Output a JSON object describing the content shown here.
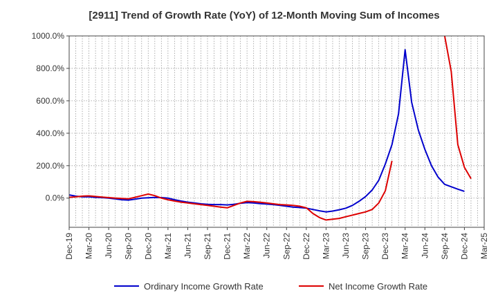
{
  "chart_data": {
    "type": "line",
    "title": "[2911]  Trend of Growth Rate (YoY) of 12-Month Moving Sum of Incomes",
    "xlabel": "",
    "ylabel": "",
    "ylim": [
      -180,
      1000
    ],
    "y_ticks": [
      0,
      200,
      400,
      600,
      800,
      1000
    ],
    "y_tick_labels": [
      "0.0%",
      "200.0%",
      "400.0%",
      "600.0%",
      "800.0%",
      "1000.0%"
    ],
    "grid": true,
    "legend_position": "bottom",
    "x_tick_labels": [
      "Dec-19",
      "Mar-20",
      "Jun-20",
      "Sep-20",
      "Dec-20",
      "Mar-21",
      "Jun-21",
      "Sep-21",
      "Dec-21",
      "Mar-22",
      "Jun-22",
      "Sep-22",
      "Dec-22",
      "Mar-23",
      "Jun-23",
      "Sep-23",
      "Dec-23",
      "Mar-24",
      "Jun-24",
      "Sep-24",
      "Dec-24",
      "Mar-25"
    ],
    "months": [
      "Dec-19",
      "Jan-20",
      "Feb-20",
      "Mar-20",
      "Apr-20",
      "May-20",
      "Jun-20",
      "Jul-20",
      "Aug-20",
      "Sep-20",
      "Oct-20",
      "Nov-20",
      "Dec-20",
      "Jan-21",
      "Feb-21",
      "Mar-21",
      "Apr-21",
      "May-21",
      "Jun-21",
      "Jul-21",
      "Aug-21",
      "Sep-21",
      "Oct-21",
      "Nov-21",
      "Dec-21",
      "Jan-22",
      "Feb-22",
      "Mar-22",
      "Apr-22",
      "May-22",
      "Jun-22",
      "Jul-22",
      "Aug-22",
      "Sep-22",
      "Oct-22",
      "Nov-22",
      "Dec-22",
      "Jan-23",
      "Feb-23",
      "Mar-23",
      "Apr-23",
      "May-23",
      "Jun-23",
      "Jul-23",
      "Aug-23",
      "Sep-23",
      "Oct-23",
      "Nov-23",
      "Dec-23",
      "Jan-24",
      "Feb-24",
      "Mar-24",
      "Apr-24",
      "May-24",
      "Jun-24",
      "Jul-24",
      "Aug-24",
      "Sep-24",
      "Oct-24",
      "Nov-24",
      "Dec-24",
      "Jan-25",
      "Feb-25",
      "Mar-25"
    ],
    "series": [
      {
        "name": "Ordinary Income Growth Rate",
        "color": "#0000cc",
        "values": [
          20,
          12,
          8,
          8,
          5,
          3,
          0,
          -5,
          -10,
          -12,
          -6,
          0,
          2,
          4,
          3,
          0,
          -10,
          -18,
          -25,
          -30,
          -35,
          -38,
          -40,
          -40,
          -42,
          -38,
          -32,
          -28,
          -30,
          -34,
          -37,
          -40,
          -45,
          -50,
          -55,
          -58,
          -62,
          -70,
          -78,
          -85,
          -80,
          -72,
          -62,
          -45,
          -20,
          10,
          50,
          110,
          210,
          330,
          520,
          915,
          590,
          420,
          300,
          200,
          130,
          85,
          70,
          55,
          42,
          null,
          null,
          null
        ]
      },
      {
        "name": "Net Income Growth Rate",
        "color": "#dd0000",
        "values": [
          5,
          8,
          12,
          14,
          10,
          6,
          3,
          0,
          -2,
          -4,
          5,
          15,
          25,
          15,
          0,
          -10,
          -18,
          -25,
          -30,
          -35,
          -40,
          -45,
          -50,
          -55,
          -60,
          -45,
          -30,
          -20,
          -22,
          -26,
          -30,
          -35,
          -40,
          -42,
          -45,
          -50,
          -60,
          -95,
          -120,
          -135,
          -130,
          -125,
          -115,
          -105,
          -95,
          -85,
          -70,
          -30,
          45,
          230,
          null,
          null,
          null,
          null,
          null,
          null,
          null,
          1000,
          780,
          330,
          190,
          120,
          null,
          null
        ]
      }
    ]
  }
}
